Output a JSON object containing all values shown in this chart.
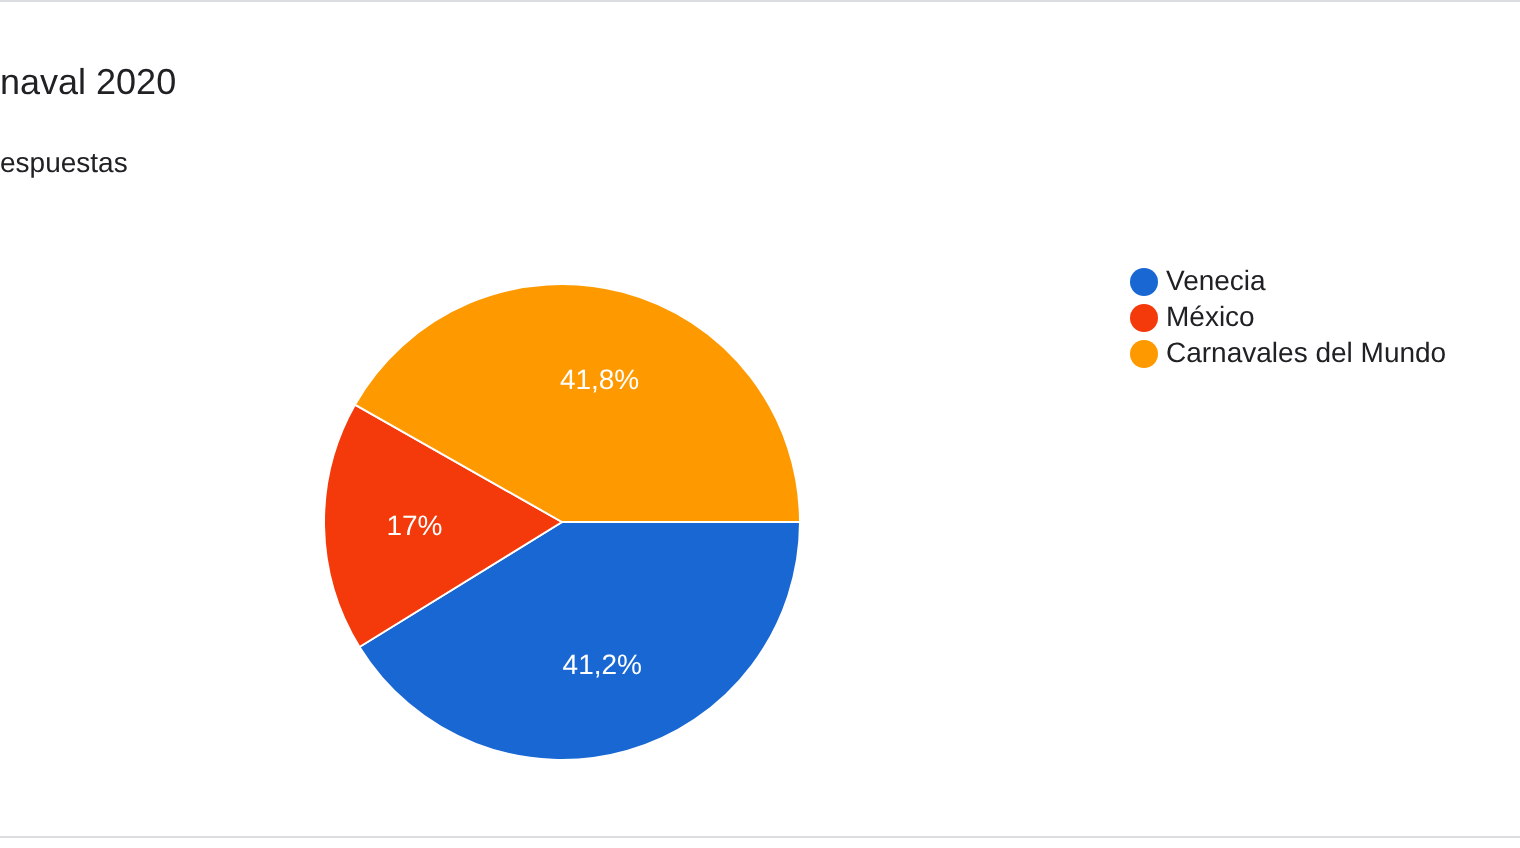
{
  "chart_data": {
    "type": "pie",
    "title": "naval 2020",
    "subtitle": "espuestas",
    "categories": [
      "Venecia",
      "México",
      "Carnavales del Mundo"
    ],
    "values": [
      41.2,
      17,
      41.8
    ],
    "colors": [
      "#1967d2",
      "#f4390b",
      "#ff9900"
    ],
    "value_labels": [
      "41,2%",
      "17%",
      "41,8%"
    ],
    "legend": "right"
  }
}
